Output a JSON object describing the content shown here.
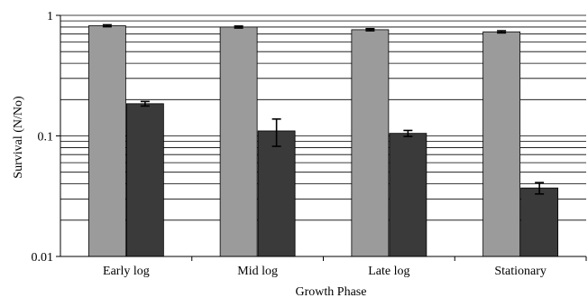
{
  "chart_data": {
    "type": "bar",
    "title": "",
    "xlabel": "Growth Phase",
    "ylabel": "Survival (N/No)",
    "yscale": "log",
    "ylim": [
      0.01,
      1
    ],
    "grid": true,
    "legend": "none",
    "categories": [
      "Early log",
      "Mid log",
      "Late log",
      "Stationary"
    ],
    "yticks": [
      {
        "value": 0.01,
        "label": "0.01"
      },
      {
        "value": 0.1,
        "label": "0.1"
      },
      {
        "value": 1,
        "label": "1"
      }
    ],
    "series": [
      {
        "color": "#9b9b9b",
        "values": [
          0.82,
          0.8,
          0.76,
          0.73
        ],
        "errors": [
          0.015,
          0.015,
          0.015,
          0.015
        ]
      },
      {
        "color": "#3a3a3a",
        "values": [
          0.185,
          0.11,
          0.105,
          0.037
        ],
        "errors": [
          0.008,
          0.028,
          0.006,
          0.004
        ]
      }
    ]
  }
}
